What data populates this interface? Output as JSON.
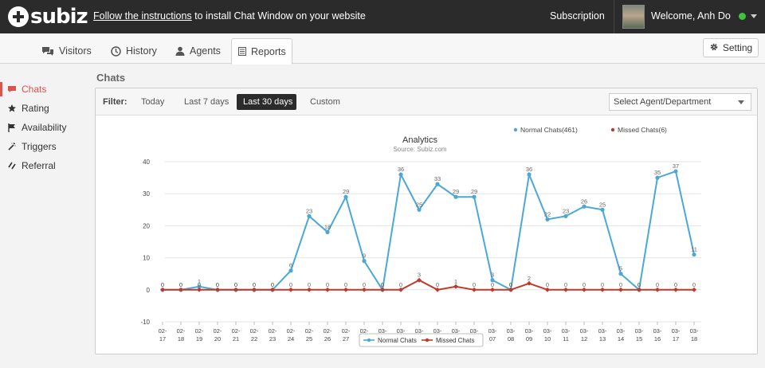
{
  "topbar": {
    "logo_text": "subiz",
    "install_link": "Follow the instructions",
    "install_rest": " to install Chat Window on your website",
    "subscription": "Subscription",
    "welcome": "Welcome, Anh Do"
  },
  "nav": {
    "tabs": [
      {
        "label": "Visitors",
        "icon": "chat-bubbles-icon"
      },
      {
        "label": "History",
        "icon": "clock-icon"
      },
      {
        "label": "Agents",
        "icon": "user-icon"
      },
      {
        "label": "Reports",
        "icon": "report-icon",
        "active": true
      }
    ],
    "setting_label": "Setting"
  },
  "sidebar": {
    "items": [
      {
        "label": "Chats",
        "icon": "chat-icon",
        "active": true
      },
      {
        "label": "Rating",
        "icon": "star-icon"
      },
      {
        "label": "Availability",
        "icon": "flag-icon"
      },
      {
        "label": "Triggers",
        "icon": "wand-icon"
      },
      {
        "label": "Referral",
        "icon": "link-icon"
      }
    ]
  },
  "page_title": "Chats",
  "filter": {
    "label": "Filter:",
    "options": [
      "Today",
      "Last 7 days",
      "Last 30 days",
      "Custom"
    ],
    "selected": "Last 30 days",
    "agent_select": "Select Agent/Department"
  },
  "colors": {
    "accent_red": "#d9534f",
    "normal_series": "#4aa8d8",
    "missed_series": "#c0392b",
    "topbar_bg": "#2b2b2b"
  },
  "chart_data": {
    "type": "line",
    "title": "Analytics",
    "subtitle": "Source: Subiz.com",
    "ylim": [
      -10,
      40
    ],
    "yticks": [
      -10,
      0,
      10,
      20,
      30,
      40
    ],
    "grid": true,
    "legend_top": [
      "Normal Chats(461)",
      "Missed Chats(6)"
    ],
    "legend_bottom": [
      "Normal Chats",
      "Missed Chats"
    ],
    "categories": [
      [
        "02-",
        "17"
      ],
      [
        "02-",
        "18"
      ],
      [
        "02-",
        "19"
      ],
      [
        "02-",
        "20"
      ],
      [
        "02-",
        "21"
      ],
      [
        "02-",
        "22"
      ],
      [
        "02-",
        "23"
      ],
      [
        "02-",
        "24"
      ],
      [
        "02-",
        "25"
      ],
      [
        "02-",
        "26"
      ],
      [
        "02-",
        "27"
      ],
      [
        "02-",
        "28"
      ],
      [
        "03-",
        "01"
      ],
      [
        "03-",
        "02"
      ],
      [
        "03-",
        "03"
      ],
      [
        "03-",
        "04"
      ],
      [
        "03-",
        "05"
      ],
      [
        "03-",
        "06"
      ],
      [
        "03-",
        "07"
      ],
      [
        "03-",
        "08"
      ],
      [
        "03-",
        "09"
      ],
      [
        "03-",
        "10"
      ],
      [
        "03-",
        "11"
      ],
      [
        "03-",
        "12"
      ],
      [
        "03-",
        "13"
      ],
      [
        "03-",
        "14"
      ],
      [
        "03-",
        "15"
      ],
      [
        "03-",
        "16"
      ],
      [
        "03-",
        "17"
      ],
      [
        "03-",
        "18"
      ]
    ],
    "series": [
      {
        "name": "Normal Chats",
        "values": [
          0,
          0,
          1,
          0,
          0,
          0,
          0,
          6,
          23,
          18,
          29,
          9,
          0,
          36,
          25,
          33,
          29,
          29,
          3,
          0,
          36,
          22,
          23,
          26,
          25,
          5,
          0,
          35,
          37,
          11
        ]
      },
      {
        "name": "Missed Chats",
        "values": [
          0,
          0,
          0,
          0,
          0,
          0,
          0,
          0,
          0,
          0,
          0,
          0,
          0,
          0,
          3,
          0,
          1,
          0,
          0,
          0,
          2,
          0,
          0,
          0,
          0,
          0,
          0,
          0,
          0,
          0
        ]
      }
    ]
  }
}
